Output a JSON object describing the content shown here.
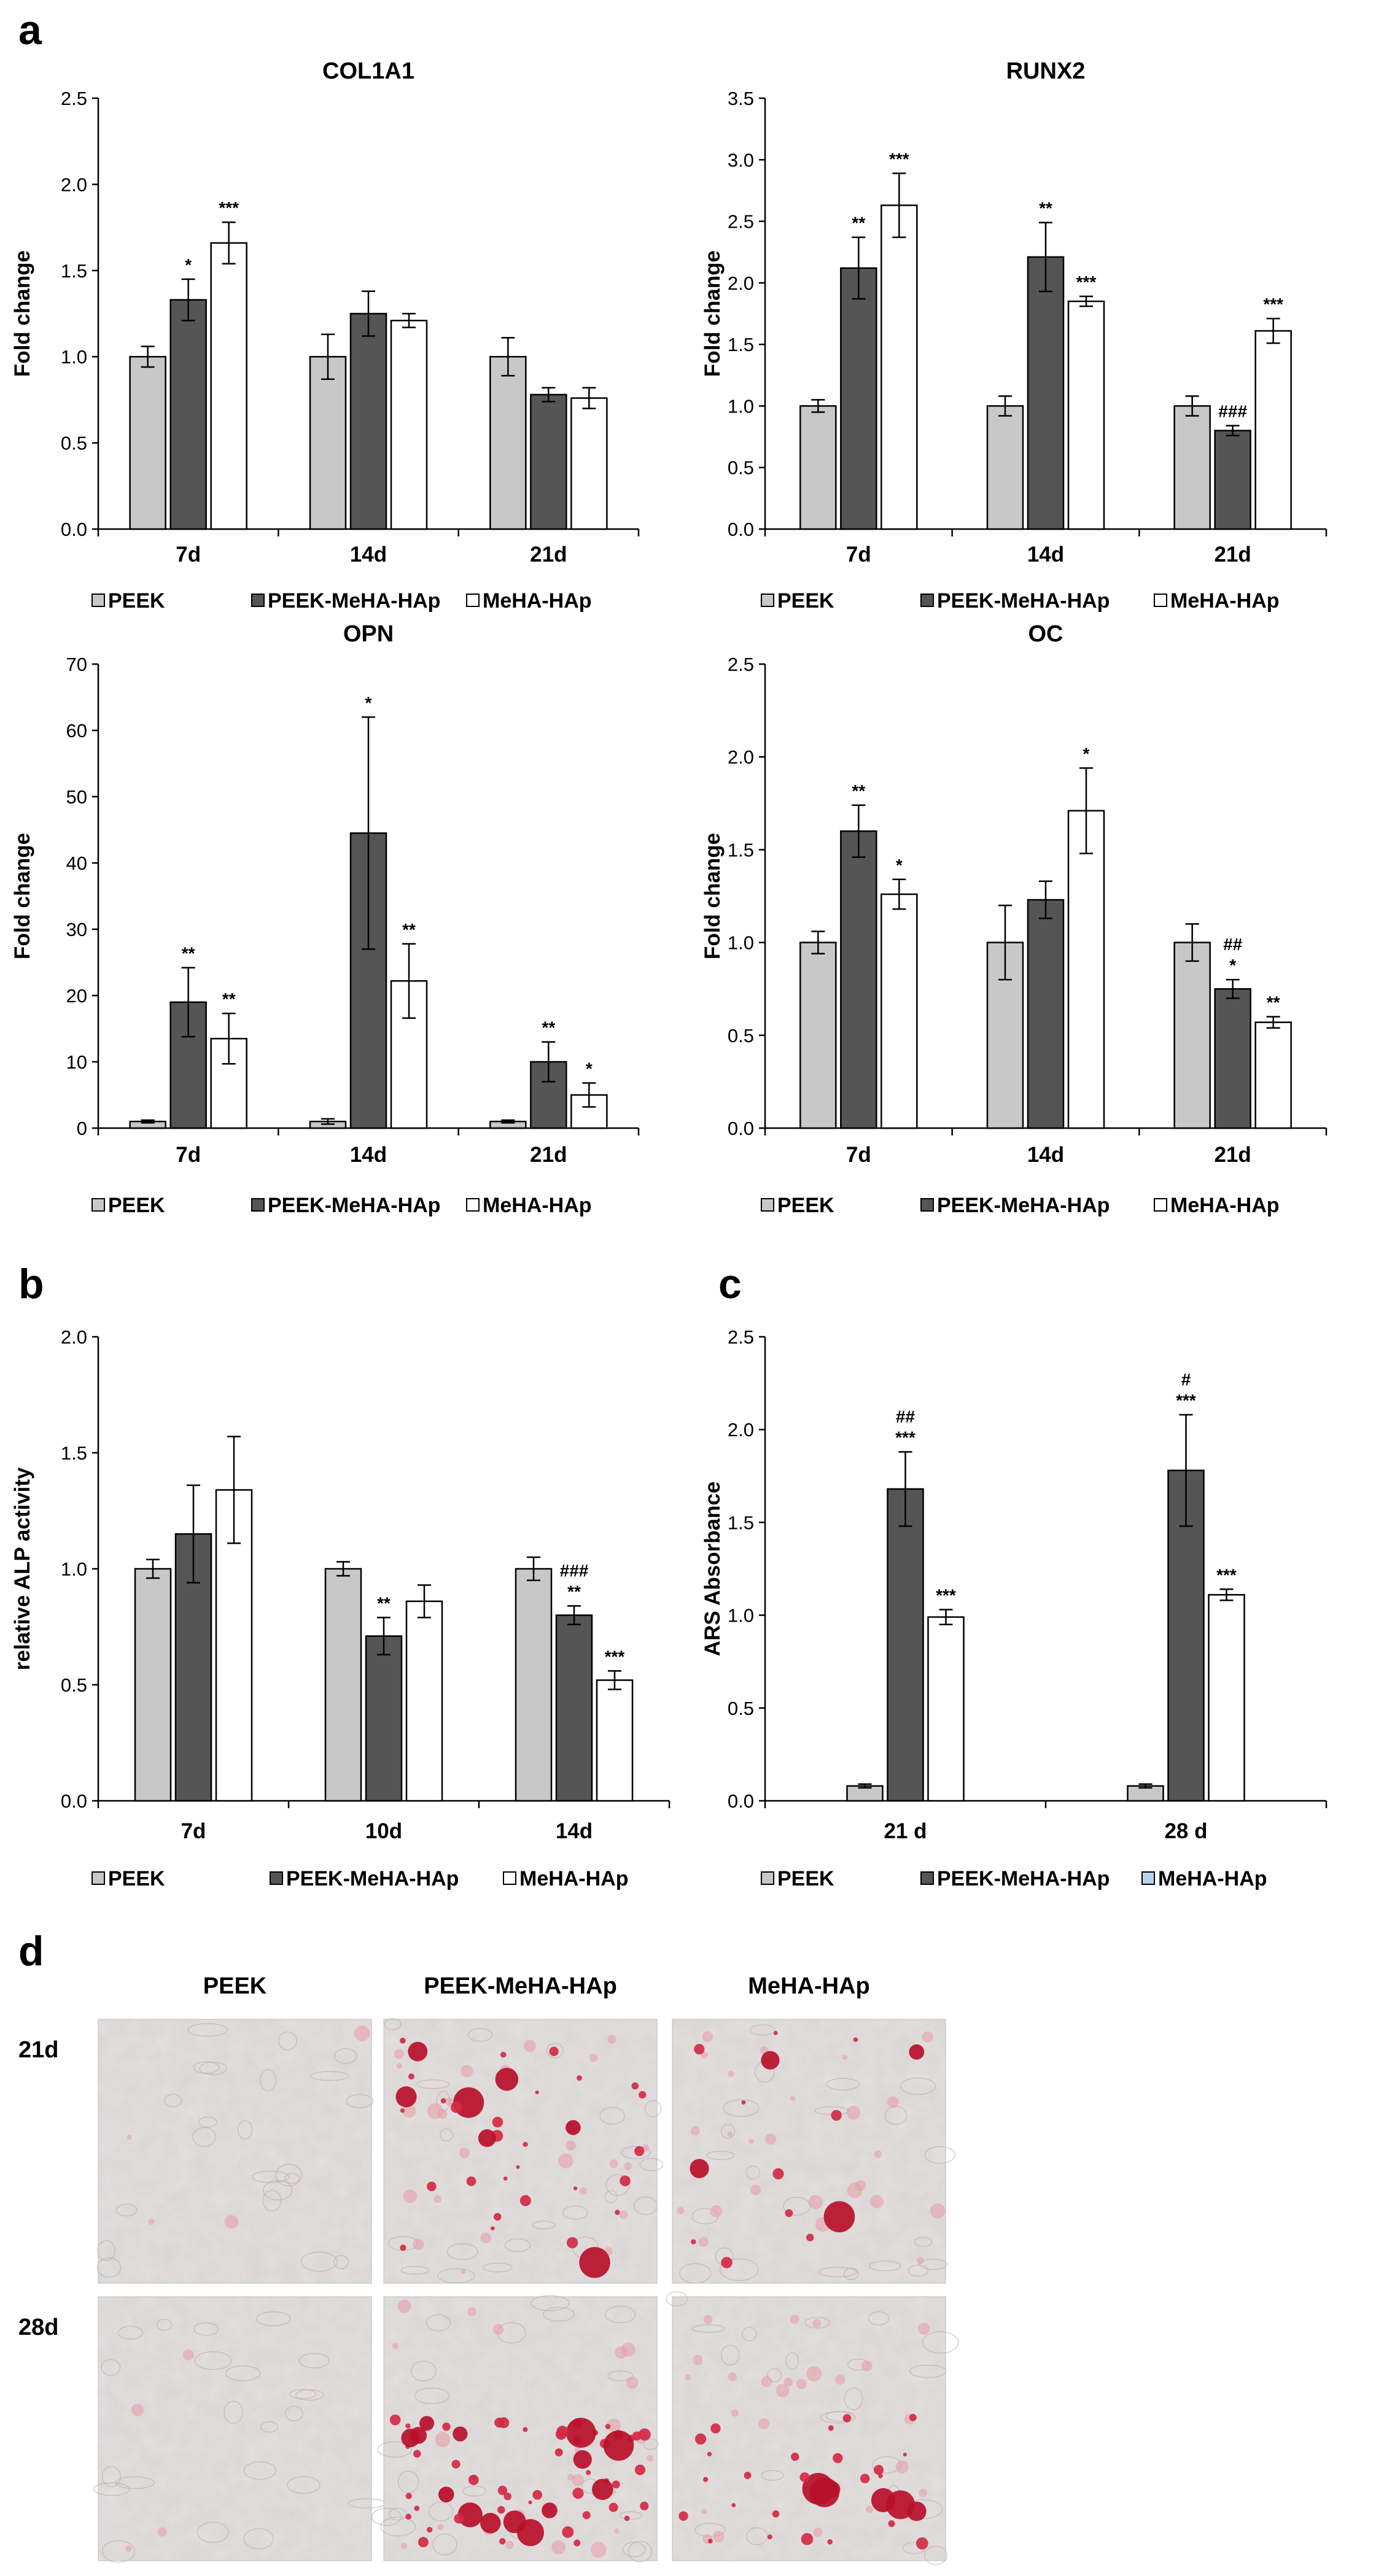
{
  "panels": {
    "a": "a",
    "b": "b",
    "c": "c",
    "d": "d"
  },
  "colors": {
    "PEEK": "#c8c8c8",
    "PEEK-MeHA-HAp": "#555555",
    "MeHA-HAp": "#ffffff",
    "MeHA-HAp_c": "#b7d3ea"
  },
  "chart_data": [
    {
      "id": "col1a1",
      "type": "bar",
      "title": "COL1A1",
      "ylabel": "Fold change",
      "ylim": [
        0,
        2.5
      ],
      "ytick_labels": [
        "0.0",
        "0.5",
        "1.0",
        "1.5",
        "2.0",
        "2.5"
      ],
      "categories": [
        "7d",
        "14d",
        "21d"
      ],
      "legend": [
        "PEEK",
        "PEEK-MeHA-HAp",
        "MeHA-HAp"
      ],
      "series": [
        {
          "name": "PEEK",
          "values": [
            1.0,
            1.0,
            1.0
          ],
          "errors": [
            0.06,
            0.13,
            0.11
          ],
          "annotations": [
            "",
            "",
            ""
          ]
        },
        {
          "name": "PEEK-MeHA-HAp",
          "values": [
            1.33,
            1.25,
            0.78
          ],
          "errors": [
            0.12,
            0.13,
            0.04
          ],
          "annotations": [
            "*",
            "",
            ""
          ]
        },
        {
          "name": "MeHA-HAp",
          "values": [
            1.66,
            1.21,
            0.76
          ],
          "errors": [
            0.12,
            0.04,
            0.06
          ],
          "annotations": [
            "***",
            "",
            ""
          ]
        }
      ]
    },
    {
      "id": "runx2",
      "type": "bar",
      "title": "RUNX2",
      "ylabel": "Fold change",
      "ylim": [
        0,
        3.5
      ],
      "ytick_labels": [
        "0.0",
        "0.5",
        "1.0",
        "1.5",
        "2.0",
        "2.5",
        "3.0",
        "3.5"
      ],
      "categories": [
        "7d",
        "14d",
        "21d"
      ],
      "legend": [
        "PEEK",
        "PEEK-MeHA-HAp",
        "MeHA-HAp"
      ],
      "series": [
        {
          "name": "PEEK",
          "values": [
            1.0,
            1.0,
            1.0
          ],
          "errors": [
            0.05,
            0.08,
            0.08
          ],
          "annotations": [
            "",
            "",
            ""
          ]
        },
        {
          "name": "PEEK-MeHA-HAp",
          "values": [
            2.12,
            2.21,
            0.8
          ],
          "errors": [
            0.25,
            0.28,
            0.04
          ],
          "annotations": [
            "**",
            "**",
            "###"
          ]
        },
        {
          "name": "MeHA-HAp",
          "values": [
            2.63,
            1.85,
            1.61
          ],
          "errors": [
            0.26,
            0.04,
            0.1
          ],
          "annotations": [
            "***",
            "***",
            "***"
          ]
        }
      ]
    },
    {
      "id": "opn",
      "type": "bar",
      "title": "OPN",
      "ylabel": "Fold change",
      "ylim": [
        0,
        70
      ],
      "ytick_labels": [
        "0",
        "10",
        "20",
        "30",
        "40",
        "50",
        "60",
        "70"
      ],
      "categories": [
        "7d",
        "14d",
        "21d"
      ],
      "legend": [
        "PEEK",
        "PEEK-MeHA-HAp",
        "MeHA-HAp"
      ],
      "series": [
        {
          "name": "PEEK",
          "values": [
            1.0,
            1.0,
            1.0
          ],
          "errors": [
            0.2,
            0.4,
            0.2
          ],
          "annotations": [
            "",
            "",
            ""
          ]
        },
        {
          "name": "PEEK-MeHA-HAp",
          "values": [
            19,
            44.5,
            10
          ],
          "errors": [
            5.2,
            17.5,
            3
          ],
          "annotations": [
            "**",
            "*",
            "**"
          ]
        },
        {
          "name": "MeHA-HAp",
          "values": [
            13.5,
            22.2,
            5
          ],
          "errors": [
            3.8,
            5.6,
            1.8
          ],
          "annotations": [
            "**",
            "**",
            "*"
          ]
        }
      ]
    },
    {
      "id": "oc",
      "type": "bar",
      "title": "OC",
      "ylabel": "Fold change",
      "ylim": [
        0,
        2.5
      ],
      "ytick_labels": [
        "0.0",
        "0.5",
        "1.0",
        "1.5",
        "2.0",
        "2.5"
      ],
      "categories": [
        "7d",
        "14d",
        "21d"
      ],
      "legend": [
        "PEEK",
        "PEEK-MeHA-HAp",
        "MeHA-HAp"
      ],
      "series": [
        {
          "name": "PEEK",
          "values": [
            1.0,
            1.0,
            1.0
          ],
          "errors": [
            0.06,
            0.2,
            0.1
          ],
          "annotations": [
            "",
            "",
            ""
          ]
        },
        {
          "name": "PEEK-MeHA-HAp",
          "values": [
            1.6,
            1.23,
            0.75
          ],
          "errors": [
            0.14,
            0.1,
            0.05
          ],
          "annotations": [
            "**",
            "",
            "*"
          ]
        },
        {
          "name": "MeHA-HAp",
          "values": [
            1.26,
            1.71,
            0.57
          ],
          "errors": [
            0.08,
            0.23,
            0.03
          ],
          "annotations": [
            "*",
            "*",
            "**"
          ]
        }
      ],
      "extra_annotations": [
        {
          "category": 2,
          "series": 1,
          "text": "##"
        }
      ]
    },
    {
      "id": "alp",
      "type": "bar",
      "title": "",
      "ylabel": "relative ALP activity",
      "ylim": [
        0,
        2.0
      ],
      "ytick_labels": [
        "0.0",
        "0.5",
        "1.0",
        "1.5",
        "2.0"
      ],
      "categories": [
        "7d",
        "10d",
        "14d"
      ],
      "legend": [
        "PEEK",
        "PEEK-MeHA-HAp",
        "MeHA-HAp"
      ],
      "series": [
        {
          "name": "PEEK",
          "values": [
            1.0,
            1.0,
            1.0
          ],
          "errors": [
            0.04,
            0.03,
            0.05
          ],
          "annotations": [
            "",
            "",
            ""
          ]
        },
        {
          "name": "PEEK-MeHA-HAp",
          "values": [
            1.15,
            0.71,
            0.8
          ],
          "errors": [
            0.21,
            0.08,
            0.04
          ],
          "annotations": [
            "",
            "**",
            "**"
          ]
        },
        {
          "name": "MeHA-HAp",
          "values": [
            1.34,
            0.86,
            0.52
          ],
          "errors": [
            0.23,
            0.07,
            0.04
          ],
          "annotations": [
            "",
            "",
            "***"
          ]
        }
      ],
      "extra_annotations": [
        {
          "category": 2,
          "series": 1,
          "text": "###"
        }
      ]
    },
    {
      "id": "ars",
      "type": "bar",
      "title": "",
      "ylabel": "ARS Absorbance",
      "ylim": [
        0,
        2.5
      ],
      "ytick_labels": [
        "0.0",
        "0.5",
        "1.0",
        "1.5",
        "2.0",
        "2.5"
      ],
      "categories": [
        "21 d",
        "28 d"
      ],
      "legend": [
        "PEEK",
        "PEEK-MeHA-HAp",
        "MeHA-HAp"
      ],
      "series": [
        {
          "name": "PEEK",
          "values": [
            0.08,
            0.08
          ],
          "errors": [
            0.01,
            0.01
          ],
          "annotations": [
            "",
            ""
          ]
        },
        {
          "name": "PEEK-MeHA-HAp",
          "values": [
            1.68,
            1.78
          ],
          "errors": [
            0.2,
            0.3
          ],
          "annotations": [
            "***",
            "***"
          ]
        },
        {
          "name": "MeHA-HAp",
          "values": [
            0.99,
            1.11
          ],
          "errors": [
            0.04,
            0.03
          ],
          "annotations": [
            "***",
            "***"
          ]
        }
      ],
      "extra_annotations": [
        {
          "category": 0,
          "series": 1,
          "text": "##"
        },
        {
          "category": 1,
          "series": 1,
          "text": "#"
        }
      ]
    }
  ],
  "staining": {
    "columns": [
      "PEEK",
      "PEEK-MeHA-HAp",
      "MeHA-HAp"
    ],
    "rows": [
      "21d",
      "28d"
    ]
  }
}
